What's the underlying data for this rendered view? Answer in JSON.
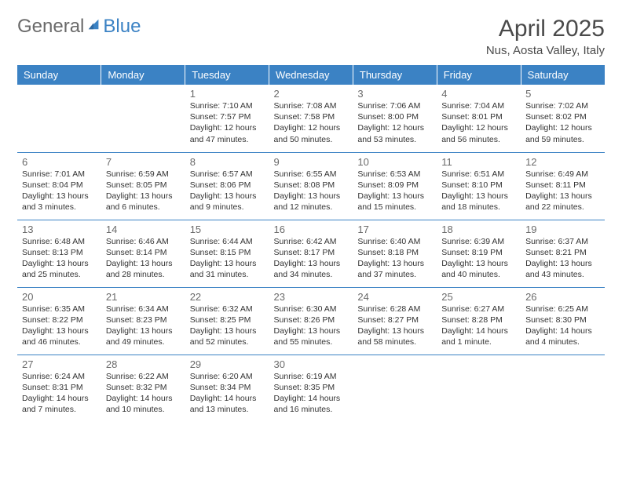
{
  "logo": {
    "part1": "General",
    "part2": "Blue"
  },
  "header": {
    "title": "April 2025",
    "subtitle": "Nus, Aosta Valley, Italy"
  },
  "colors": {
    "header_bg": "#3b82c4",
    "header_fg": "#ffffff",
    "border": "#3b82c4",
    "daynum": "#6a6a6a",
    "text": "#333333",
    "logo_gray": "#6a6a6a",
    "logo_blue": "#3b82c4"
  },
  "weekdays": [
    "Sunday",
    "Monday",
    "Tuesday",
    "Wednesday",
    "Thursday",
    "Friday",
    "Saturday"
  ],
  "weeks": [
    [
      null,
      null,
      {
        "day": "1",
        "sunrise": "Sunrise: 7:10 AM",
        "sunset": "Sunset: 7:57 PM",
        "daylight": "Daylight: 12 hours and 47 minutes."
      },
      {
        "day": "2",
        "sunrise": "Sunrise: 7:08 AM",
        "sunset": "Sunset: 7:58 PM",
        "daylight": "Daylight: 12 hours and 50 minutes."
      },
      {
        "day": "3",
        "sunrise": "Sunrise: 7:06 AM",
        "sunset": "Sunset: 8:00 PM",
        "daylight": "Daylight: 12 hours and 53 minutes."
      },
      {
        "day": "4",
        "sunrise": "Sunrise: 7:04 AM",
        "sunset": "Sunset: 8:01 PM",
        "daylight": "Daylight: 12 hours and 56 minutes."
      },
      {
        "day": "5",
        "sunrise": "Sunrise: 7:02 AM",
        "sunset": "Sunset: 8:02 PM",
        "daylight": "Daylight: 12 hours and 59 minutes."
      }
    ],
    [
      {
        "day": "6",
        "sunrise": "Sunrise: 7:01 AM",
        "sunset": "Sunset: 8:04 PM",
        "daylight": "Daylight: 13 hours and 3 minutes."
      },
      {
        "day": "7",
        "sunrise": "Sunrise: 6:59 AM",
        "sunset": "Sunset: 8:05 PM",
        "daylight": "Daylight: 13 hours and 6 minutes."
      },
      {
        "day": "8",
        "sunrise": "Sunrise: 6:57 AM",
        "sunset": "Sunset: 8:06 PM",
        "daylight": "Daylight: 13 hours and 9 minutes."
      },
      {
        "day": "9",
        "sunrise": "Sunrise: 6:55 AM",
        "sunset": "Sunset: 8:08 PM",
        "daylight": "Daylight: 13 hours and 12 minutes."
      },
      {
        "day": "10",
        "sunrise": "Sunrise: 6:53 AM",
        "sunset": "Sunset: 8:09 PM",
        "daylight": "Daylight: 13 hours and 15 minutes."
      },
      {
        "day": "11",
        "sunrise": "Sunrise: 6:51 AM",
        "sunset": "Sunset: 8:10 PM",
        "daylight": "Daylight: 13 hours and 18 minutes."
      },
      {
        "day": "12",
        "sunrise": "Sunrise: 6:49 AM",
        "sunset": "Sunset: 8:11 PM",
        "daylight": "Daylight: 13 hours and 22 minutes."
      }
    ],
    [
      {
        "day": "13",
        "sunrise": "Sunrise: 6:48 AM",
        "sunset": "Sunset: 8:13 PM",
        "daylight": "Daylight: 13 hours and 25 minutes."
      },
      {
        "day": "14",
        "sunrise": "Sunrise: 6:46 AM",
        "sunset": "Sunset: 8:14 PM",
        "daylight": "Daylight: 13 hours and 28 minutes."
      },
      {
        "day": "15",
        "sunrise": "Sunrise: 6:44 AM",
        "sunset": "Sunset: 8:15 PM",
        "daylight": "Daylight: 13 hours and 31 minutes."
      },
      {
        "day": "16",
        "sunrise": "Sunrise: 6:42 AM",
        "sunset": "Sunset: 8:17 PM",
        "daylight": "Daylight: 13 hours and 34 minutes."
      },
      {
        "day": "17",
        "sunrise": "Sunrise: 6:40 AM",
        "sunset": "Sunset: 8:18 PM",
        "daylight": "Daylight: 13 hours and 37 minutes."
      },
      {
        "day": "18",
        "sunrise": "Sunrise: 6:39 AM",
        "sunset": "Sunset: 8:19 PM",
        "daylight": "Daylight: 13 hours and 40 minutes."
      },
      {
        "day": "19",
        "sunrise": "Sunrise: 6:37 AM",
        "sunset": "Sunset: 8:21 PM",
        "daylight": "Daylight: 13 hours and 43 minutes."
      }
    ],
    [
      {
        "day": "20",
        "sunrise": "Sunrise: 6:35 AM",
        "sunset": "Sunset: 8:22 PM",
        "daylight": "Daylight: 13 hours and 46 minutes."
      },
      {
        "day": "21",
        "sunrise": "Sunrise: 6:34 AM",
        "sunset": "Sunset: 8:23 PM",
        "daylight": "Daylight: 13 hours and 49 minutes."
      },
      {
        "day": "22",
        "sunrise": "Sunrise: 6:32 AM",
        "sunset": "Sunset: 8:25 PM",
        "daylight": "Daylight: 13 hours and 52 minutes."
      },
      {
        "day": "23",
        "sunrise": "Sunrise: 6:30 AM",
        "sunset": "Sunset: 8:26 PM",
        "daylight": "Daylight: 13 hours and 55 minutes."
      },
      {
        "day": "24",
        "sunrise": "Sunrise: 6:28 AM",
        "sunset": "Sunset: 8:27 PM",
        "daylight": "Daylight: 13 hours and 58 minutes."
      },
      {
        "day": "25",
        "sunrise": "Sunrise: 6:27 AM",
        "sunset": "Sunset: 8:28 PM",
        "daylight": "Daylight: 14 hours and 1 minute."
      },
      {
        "day": "26",
        "sunrise": "Sunrise: 6:25 AM",
        "sunset": "Sunset: 8:30 PM",
        "daylight": "Daylight: 14 hours and 4 minutes."
      }
    ],
    [
      {
        "day": "27",
        "sunrise": "Sunrise: 6:24 AM",
        "sunset": "Sunset: 8:31 PM",
        "daylight": "Daylight: 14 hours and 7 minutes."
      },
      {
        "day": "28",
        "sunrise": "Sunrise: 6:22 AM",
        "sunset": "Sunset: 8:32 PM",
        "daylight": "Daylight: 14 hours and 10 minutes."
      },
      {
        "day": "29",
        "sunrise": "Sunrise: 6:20 AM",
        "sunset": "Sunset: 8:34 PM",
        "daylight": "Daylight: 14 hours and 13 minutes."
      },
      {
        "day": "30",
        "sunrise": "Sunrise: 6:19 AM",
        "sunset": "Sunset: 8:35 PM",
        "daylight": "Daylight: 14 hours and 16 minutes."
      },
      null,
      null,
      null
    ]
  ]
}
